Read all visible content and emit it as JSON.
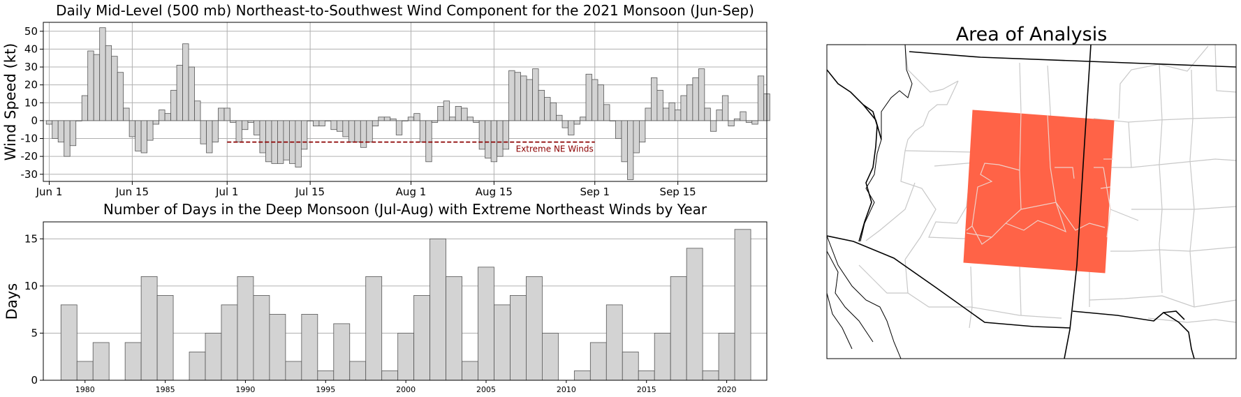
{
  "chart_data": [
    {
      "type": "bar",
      "title": "Daily Mid-Level (500 mb) Northeast-to-Southwest Wind Component for the 2021 Monsoon (Jun-Sep)",
      "ylabel": "Wind Speed (kt)",
      "xlabel": "",
      "x_start": "Jun 1",
      "xticks": [
        {
          "label": "Jun 1",
          "day": 0
        },
        {
          "label": "Jun 15",
          "day": 14
        },
        {
          "label": "Jul 1",
          "day": 30
        },
        {
          "label": "Jul 15",
          "day": 44
        },
        {
          "label": "Aug 1",
          "day": 61
        },
        {
          "label": "Aug 15",
          "day": 75
        },
        {
          "label": "Sep 1",
          "day": 92
        },
        {
          "label": "Sep 15",
          "day": 106
        }
      ],
      "yticks": [
        -30,
        -20,
        -10,
        0,
        10,
        20,
        30,
        40,
        50
      ],
      "ylim": [
        -34,
        55
      ],
      "xlim": [
        -1,
        121
      ],
      "grid": true,
      "values": [
        -2,
        -10,
        -12,
        -20,
        -14,
        0,
        14,
        39,
        37,
        52,
        42,
        36,
        27,
        7,
        -9,
        -17,
        -18,
        -11,
        -2,
        6,
        4,
        17,
        31,
        43,
        30,
        11,
        -13,
        -18,
        -12,
        7,
        7,
        -1,
        -12,
        -5,
        -1,
        -8,
        -18,
        -23,
        -24,
        -24,
        -22,
        -24,
        -26,
        -16,
        0,
        -3,
        -3,
        0,
        -5,
        -6,
        -9,
        -12,
        -12,
        -15,
        -12,
        -3,
        2,
        2,
        1,
        -8,
        0,
        2,
        4,
        -12,
        -23,
        -1,
        8,
        11,
        2,
        8,
        7,
        2,
        -1,
        -16,
        -21,
        -23,
        -20,
        -16,
        28,
        27,
        25,
        23,
        29,
        17,
        13,
        10,
        3,
        -4,
        -8,
        -2,
        2,
        26,
        23,
        20,
        9,
        0,
        -10,
        -23,
        -33,
        -18,
        -12,
        7,
        24,
        17,
        7,
        10,
        6,
        14,
        20,
        24,
        29,
        7,
        -6,
        6,
        14,
        -3,
        1,
        5,
        -1,
        -2,
        25,
        15
      ],
      "reference_line": {
        "value": -12,
        "x_from_day": 30,
        "x_to_day": 92,
        "label": "Extreme NE Winds",
        "color": "#8b0000"
      }
    },
    {
      "type": "bar",
      "title": "Number of Days in the Deep Monsoon (Jul-Aug) with Extreme Northeast Winds by Year",
      "ylabel": "Days",
      "xlabel": "",
      "categories": [
        1979,
        1980,
        1981,
        1982,
        1983,
        1984,
        1985,
        1986,
        1987,
        1988,
        1989,
        1990,
        1991,
        1992,
        1993,
        1994,
        1995,
        1996,
        1997,
        1998,
        1999,
        2000,
        2001,
        2002,
        2003,
        2004,
        2005,
        2006,
        2007,
        2008,
        2009,
        2010,
        2011,
        2012,
        2013,
        2014,
        2015,
        2016,
        2017,
        2018,
        2019,
        2020,
        2021
      ],
      "values": [
        8,
        2,
        4,
        0,
        4,
        11,
        9,
        0,
        3,
        5,
        8,
        11,
        9,
        7,
        2,
        7,
        1,
        6,
        2,
        11,
        1,
        5,
        9,
        15,
        11,
        2,
        12,
        8,
        9,
        11,
        5,
        0,
        1,
        4,
        8,
        3,
        1,
        5,
        11,
        14,
        1,
        5,
        16
      ],
      "xticks": [
        1980,
        1985,
        1990,
        1995,
        2000,
        2005,
        2010,
        2015,
        2020
      ],
      "yticks": [
        0,
        5,
        10,
        15
      ],
      "ylim": [
        0,
        16.8
      ],
      "xlim": [
        1977.4,
        2022.5
      ],
      "grid": "y-only"
    }
  ],
  "map": {
    "title": "Area of Analysis",
    "highlight_color": "#ff6347",
    "region": "Arizona / New Mexico"
  }
}
